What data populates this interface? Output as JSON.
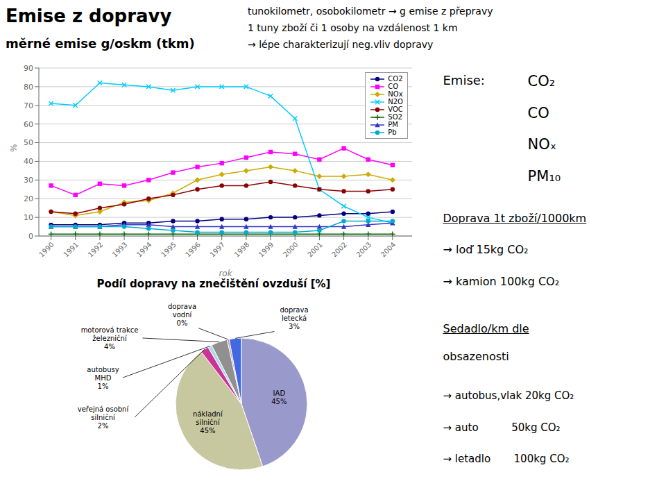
{
  "chart_data": [
    {
      "type": "line",
      "title": "Emise z dopravy",
      "subtitle": "měrné emise g/oskm (tkm)",
      "annotations": [
        "tunokilometr, osobokilometr → g emise z přepravy",
        "1 tuny zboží či 1 osoby na vzdálenost 1 km",
        "→ lépe charakterizují neg.vliv dopravy",
        "Emise:",
        "CO₂",
        "CO",
        "NOₓ",
        "PM₁₀",
        "Doprava 1t zboží/1000km",
        "→ loď 15kg CO₂",
        "→ kamion 100kg CO₂",
        "Sedadlo/km dle",
        "obsazenosti",
        "→ autobus,vlak 20kg CO₂",
        "→ auto          50kg CO₂",
        "→ letadlo       100kg CO₂"
      ],
      "x": [
        1990,
        1991,
        1992,
        1993,
        1994,
        1995,
        1996,
        1997,
        1998,
        1999,
        2000,
        2001,
        2002,
        2003,
        2004
      ],
      "xlim": [
        1989.5,
        2004.8
      ],
      "xticks": [
        1990,
        1991,
        1992,
        1993,
        1994,
        1995,
        1996,
        1997,
        1998,
        1999,
        2000,
        2001,
        2002,
        2003,
        2004
      ],
      "ylim": [
        0,
        90
      ],
      "yticks": [
        0,
        10,
        20,
        30,
        40,
        50,
        60,
        70,
        80,
        90
      ],
      "xlabel": "rok",
      "ylabel": "%",
      "grid": "y",
      "legend": "upper right",
      "series": [
        {
          "name": "CO2",
          "color": "#000080",
          "marker": "circle",
          "values": [
            6,
            6,
            6,
            7,
            7,
            8,
            8,
            9,
            9,
            10,
            10,
            11,
            12,
            12,
            13
          ]
        },
        {
          "name": "CO",
          "color": "#ff00ff",
          "marker": "square",
          "values": [
            27,
            22,
            28,
            27,
            30,
            34,
            37,
            39,
            42,
            45,
            44,
            41,
            47,
            41,
            38
          ]
        },
        {
          "name": "NOx",
          "color": "#ccaa00",
          "marker": "diamond",
          "values": [
            13,
            11,
            13,
            18,
            19,
            23,
            30,
            33,
            35,
            37,
            35,
            32,
            32,
            33,
            30
          ]
        },
        {
          "name": "N2O",
          "color": "#00ccff",
          "marker": "x",
          "values": [
            71,
            70,
            82,
            81,
            80,
            78,
            80,
            80,
            80,
            75,
            63,
            25,
            16,
            10,
            7
          ]
        },
        {
          "name": "VOC",
          "color": "#8b0000",
          "marker": "circle",
          "values": [
            13,
            12,
            15,
            17,
            20,
            22,
            25,
            27,
            27,
            29,
            27,
            25,
            24,
            24,
            25
          ]
        },
        {
          "name": "SO2",
          "color": "#006600",
          "marker": "plus",
          "values": [
            1,
            1,
            1,
            1,
            1,
            1,
            1,
            1,
            1,
            1,
            1,
            1,
            1,
            1,
            1
          ]
        },
        {
          "name": "PM",
          "color": "#3333cc",
          "marker": "triangle",
          "values": [
            5,
            5,
            5,
            6,
            6,
            5,
            5,
            5,
            5,
            5,
            5,
            5,
            5,
            6,
            7
          ]
        },
        {
          "name": "Pb",
          "color": "#00aacc",
          "marker": "circle",
          "values": [
            5,
            5,
            5,
            5,
            4,
            3,
            2,
            2,
            2,
            2,
            2,
            3,
            8,
            8,
            8
          ]
        }
      ]
    },
    {
      "type": "pie",
      "title": "Podíl dopravy na znečištění ovzduší [%]",
      "categories": [
        "IAD",
        "nákladní\nsilniční",
        "veřejná osobní\nsilniční",
        "autobusy\nMHD",
        "motorová trakce\nželezniční",
        "doprava\nvodní",
        "doprava\nletecká"
      ],
      "values": [
        45,
        45,
        2,
        1,
        4,
        0.5,
        3
      ],
      "value_labels": [
        "45%",
        "45%",
        "2%",
        "1%",
        "4%",
        "0%",
        "3%"
      ],
      "colors": [
        "#9999cc",
        "#c8c8a0",
        "#cc3399",
        "#add8e6",
        "#909090",
        "#cc99aa",
        "#4169e1"
      ],
      "data_labels": true
    }
  ]
}
